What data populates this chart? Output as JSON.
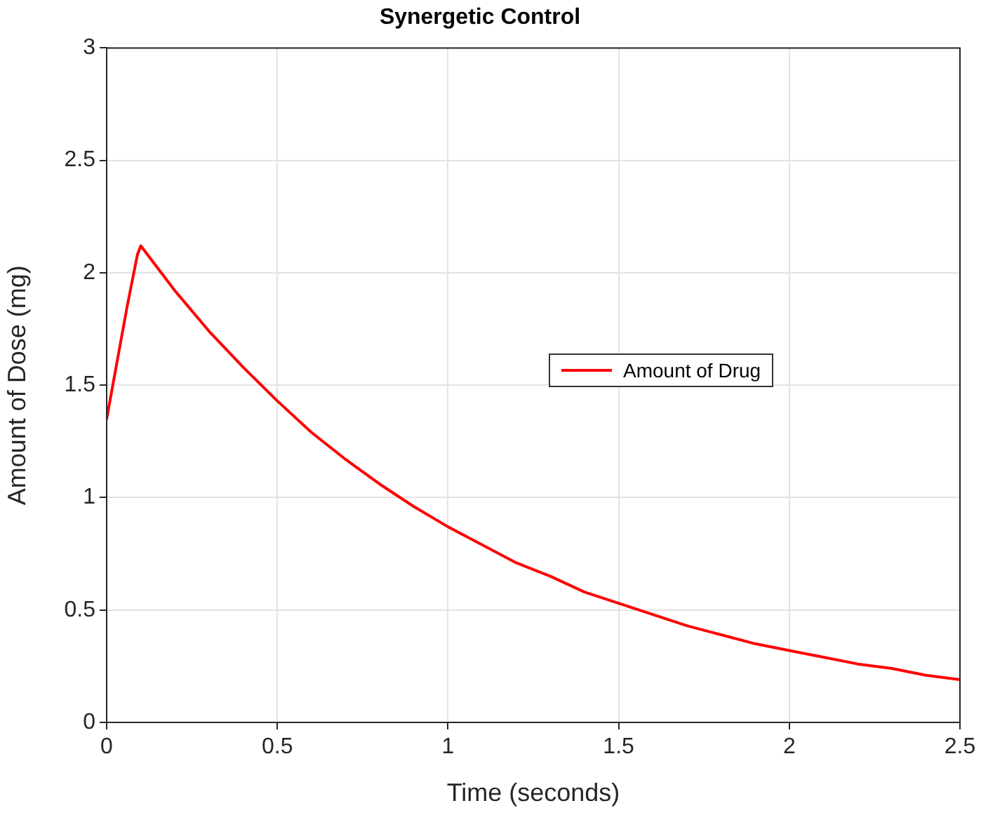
{
  "chart_data": {
    "type": "line",
    "title": "Synergetic Control",
    "xlabel": "Time (seconds)",
    "ylabel": "Amount of Dose (mg)",
    "x": [
      0,
      0.03,
      0.06,
      0.09,
      0.1,
      0.2,
      0.3,
      0.4,
      0.5,
      0.6,
      0.7,
      0.8,
      0.9,
      1.0,
      1.1,
      1.2,
      1.3,
      1.4,
      1.5,
      1.6,
      1.7,
      1.8,
      1.9,
      2.0,
      2.1,
      2.2,
      2.3,
      2.4,
      2.5
    ],
    "series": [
      {
        "name": "Amount of Drug",
        "color": "#ff0000",
        "values": [
          1.35,
          1.6,
          1.85,
          2.08,
          2.12,
          1.92,
          1.74,
          1.58,
          1.43,
          1.29,
          1.17,
          1.06,
          0.96,
          0.87,
          0.79,
          0.71,
          0.65,
          0.58,
          0.53,
          0.48,
          0.43,
          0.39,
          0.35,
          0.32,
          0.29,
          0.26,
          0.24,
          0.21,
          0.19
        ]
      }
    ],
    "xlim": [
      0,
      2.5
    ],
    "xticks": [
      0,
      0.5,
      1,
      1.5,
      2,
      2.5
    ],
    "ylim": [
      0,
      3
    ],
    "yticks": [
      0,
      0.5,
      1,
      1.5,
      2,
      2.5,
      3
    ],
    "grid": true,
    "legend": "right",
    "marker": "none",
    "line_style": "solid"
  }
}
